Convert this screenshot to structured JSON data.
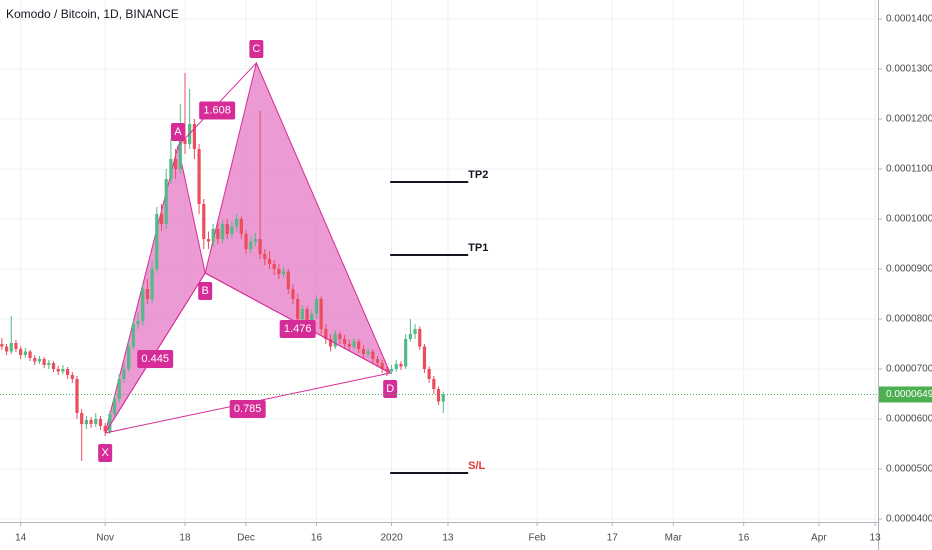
{
  "chart_data": {
    "type": "candlestick",
    "title": "Komodo / Bitcoin, 1D, BINANCE",
    "x": [
      -22,
      -21,
      -20,
      -19,
      -18,
      -17,
      -16,
      -15,
      -14,
      -13,
      -12,
      -11,
      -10,
      -9,
      -8,
      -7,
      -6,
      -5,
      -4,
      -3,
      -2,
      -1,
      0,
      1,
      2,
      3,
      4,
      5,
      6,
      7,
      8,
      9,
      10,
      11,
      12,
      13,
      14,
      15,
      16,
      17,
      18,
      19,
      20,
      21,
      22,
      23,
      24,
      25,
      26,
      27,
      28,
      29,
      30,
      31,
      32,
      33,
      34,
      35,
      36,
      37,
      38,
      39,
      40,
      41,
      42,
      43,
      44,
      45,
      46,
      47,
      48,
      49,
      50,
      51,
      52,
      53,
      54,
      55,
      56,
      57,
      58,
      59,
      60,
      61,
      62,
      63,
      64,
      65,
      66,
      67,
      68,
      69,
      70,
      71,
      72
    ],
    "open": [
      7.5e-05,
      7.45e-05,
      7.35e-05,
      7.52e-05,
      7.4e-05,
      7.28e-05,
      7.35e-05,
      7.22e-05,
      7.15e-05,
      7.2e-05,
      7.08e-05,
      7.12e-05,
      7e-05,
      6.95e-05,
      7e-05,
      6.88e-05,
      6.8e-05,
      6.12e-05,
      5.9e-05,
      5.98e-05,
      5.9e-05,
      6e-05,
      5.86e-05,
      5.75e-05,
      6.1e-05,
      6.4e-05,
      6.8e-05,
      7e-05,
      7.45e-05,
      7.9e-05,
      7.96e-05,
      8.6e-05,
      8.4e-05,
      9e-05,
      0.000101,
      9.9e-05,
      0.000108,
      0.000112,
      0.00011,
      0.000116,
      0.000115,
      0.000119,
      0.000114,
      0.000103,
      9.6e-05,
      9.55e-05,
      9.8e-05,
      9.6e-05,
      9.9e-05,
      9.7e-05,
      9.85e-05,
      0.0001,
      9.7e-05,
      9.4e-05,
      9.55e-05,
      9.6e-05,
      9.3e-05,
      9.2e-05,
      9.1e-05,
      9e-05,
      8.9e-05,
      8.95e-05,
      8.6e-05,
      8.4e-05,
      8e-05,
      8.2e-05,
      7.9e-05,
      8.1e-05,
      8.4e-05,
      7.8e-05,
      7.6e-05,
      7.45e-05,
      7.7e-05,
      7.6e-05,
      7.5e-05,
      7.45e-05,
      7.55e-05,
      7.4e-05,
      7.3e-05,
      7.35e-05,
      7.2e-05,
      7.12e-05,
      7e-05,
      6.95e-05,
      7e-05,
      7.1e-05,
      7.05e-05,
      7.6e-05,
      7.7e-05,
      7.8e-05,
      7.45e-05,
      7e-05,
      6.8e-05,
      6.6e-05,
      6.35e-05
    ],
    "high": [
      7.62e-05,
      7.5e-05,
      8.06e-05,
      7.58e-05,
      7.45e-05,
      7.42e-05,
      7.38e-05,
      7.28e-05,
      7.26e-05,
      7.24e-05,
      7.18e-05,
      7.16e-05,
      7.06e-05,
      7.08e-05,
      7.04e-05,
      6.94e-05,
      6.86e-05,
      6.2e-05,
      6.06e-05,
      6.04e-05,
      6.12e-05,
      6.06e-05,
      5.92e-05,
      6.16e-05,
      6.48e-05,
      6.9e-05,
      7.12e-05,
      7.56e-05,
      8e-05,
      8.12e-05,
      8.72e-05,
      8.8e-05,
      9.16e-05,
      0.0001024,
      0.000103,
      0.00011,
      0.000116,
      0.000114,
      0.000123,
      0.0001292,
      0.000126,
      0.00012,
      0.000115,
      0.000104,
      9.75e-05,
      9.9e-05,
      9.92e-05,
      9.98e-05,
      0.0001,
      9.95e-05,
      0.000101,
      0.0001005,
      9.78e-05,
      9.65e-05,
      9.72e-05,
      0.0001216,
      9.4e-05,
      9.35e-05,
      9.18e-05,
      9.1e-05,
      9.05e-05,
      9e-05,
      8.7e-05,
      8.5e-05,
      8.28e-05,
      8.26e-05,
      8.18e-05,
      8.48e-05,
      8.45e-05,
      7.9e-05,
      7.7e-05,
      7.78e-05,
      7.75e-05,
      7.68e-05,
      7.58e-05,
      7.62e-05,
      7.6e-05,
      7.48e-05,
      7.42e-05,
      7.4e-05,
      7.26e-05,
      7.18e-05,
      7.06e-05,
      7.08e-05,
      7.18e-05,
      7.16e-05,
      7.7e-05,
      8e-05,
      7.9e-05,
      7.85e-05,
      7.5e-05,
      7.05e-05,
      6.86e-05,
      6.65e-05,
      6.55e-05
    ],
    "low": [
      7.38e-05,
      7.28e-05,
      7.3e-05,
      7.34e-05,
      7.2e-05,
      7.22e-05,
      7.16e-05,
      7.08e-05,
      7.1e-05,
      7.02e-05,
      7e-05,
      6.94e-05,
      6.88e-05,
      6.9e-05,
      6.8e-05,
      6.72e-05,
      6e-05,
      5.16e-05,
      5.8e-05,
      5.82e-05,
      5.84e-05,
      5.78e-05,
      5.66e-05,
      5.7e-05,
      6.04e-05,
      6.32e-05,
      6.72e-05,
      6.94e-05,
      7.38e-05,
      7.8e-05,
      7.88e-05,
      8.3e-05,
      8.32e-05,
      8.92e-05,
      9.76e-05,
      9.8e-05,
      0.000107,
      0.000108,
      0.000109,
      0.000113,
      0.000114,
      0.000112,
      0.000101,
      9.4e-05,
      9.4e-05,
      9.45e-05,
      9.5e-05,
      9.52e-05,
      9.6e-05,
      9.62e-05,
      9.75e-05,
      9.6e-05,
      9.3e-05,
      9.32e-05,
      9.45e-05,
      9.2e-05,
      9.08e-05,
      9e-05,
      8.88e-05,
      8.8e-05,
      8.82e-05,
      8.5e-05,
      8.3e-05,
      7.9e-05,
      7.92e-05,
      7.7e-05,
      7.8e-05,
      8e-05,
      7.7e-05,
      7.5e-05,
      7.35e-05,
      7.4e-05,
      7.5e-05,
      7.42e-05,
      7.38e-05,
      7.4e-05,
      7.32e-05,
      7.22e-05,
      7.24e-05,
      7.12e-05,
      7.04e-05,
      6.92e-05,
      6.86e-05,
      6.9e-05,
      6.94e-05,
      6.98e-05,
      7e-05,
      7.55e-05,
      7.6e-05,
      7.38e-05,
      6.92e-05,
      6.72e-05,
      6.5e-05,
      6.28e-05,
      6.12e-05
    ],
    "close": [
      7.45e-05,
      7.35e-05,
      7.52e-05,
      7.4e-05,
      7.28e-05,
      7.35e-05,
      7.22e-05,
      7.15e-05,
      7.2e-05,
      7.08e-05,
      7.12e-05,
      7e-05,
      6.95e-05,
      7e-05,
      6.88e-05,
      6.8e-05,
      6.12e-05,
      5.9e-05,
      5.98e-05,
      5.9e-05,
      6e-05,
      5.86e-05,
      5.75e-05,
      6.1e-05,
      6.4e-05,
      6.8e-05,
      7e-05,
      7.45e-05,
      7.9e-05,
      7.96e-05,
      8.6e-05,
      8.4e-05,
      9e-05,
      0.000101,
      9.9e-05,
      0.000108,
      0.000112,
      0.00011,
      0.000116,
      0.000115,
      0.000119,
      0.000114,
      0.000103,
      9.6e-05,
      9.55e-05,
      9.8e-05,
      9.6e-05,
      9.9e-05,
      9.7e-05,
      9.85e-05,
      0.0001,
      9.7e-05,
      9.4e-05,
      9.55e-05,
      9.6e-05,
      9.3e-05,
      9.2e-05,
      9.1e-05,
      9e-05,
      8.9e-05,
      8.95e-05,
      8.6e-05,
      8.4e-05,
      8e-05,
      8.2e-05,
      7.9e-05,
      8.1e-05,
      8.4e-05,
      7.8e-05,
      7.6e-05,
      7.45e-05,
      7.7e-05,
      7.6e-05,
      7.5e-05,
      7.45e-05,
      7.55e-05,
      7.4e-05,
      7.3e-05,
      7.35e-05,
      7.2e-05,
      7.12e-05,
      7e-05,
      6.95e-05,
      7e-05,
      7.1e-05,
      7.05e-05,
      7.6e-05,
      7.7e-05,
      7.8e-05,
      7.45e-05,
      7e-05,
      6.8e-05,
      6.6e-05,
      6.35e-05,
      6.49e-05
    ],
    "up_color": "#53b987",
    "down_color": "#eb4d5c",
    "xlim": [
      -22.4,
      164.6
    ],
    "xticks": [
      {
        "value": -18,
        "label": "14"
      },
      {
        "value": 0,
        "label": "Nov"
      },
      {
        "value": 17,
        "label": "18"
      },
      {
        "value": 30,
        "label": "Dec"
      },
      {
        "value": 45,
        "label": "16"
      },
      {
        "value": 61,
        "label": "2020"
      },
      {
        "value": 73,
        "label": "13"
      },
      {
        "value": 92,
        "label": "Feb"
      },
      {
        "value": 108,
        "label": "17"
      },
      {
        "value": 121,
        "label": "Mar"
      },
      {
        "value": 136,
        "label": "16"
      },
      {
        "value": 152,
        "label": "Apr"
      },
      {
        "value": 164,
        "label": "13"
      }
    ],
    "ylim": [
      3.94e-05,
      0.0001438
    ],
    "yticks": [
      {
        "value": 4e-05,
        "label": "0.0000400"
      },
      {
        "value": 5e-05,
        "label": "0.0000500"
      },
      {
        "value": 6e-05,
        "label": "0.0000600"
      },
      {
        "value": 7e-05,
        "label": "0.0000700"
      },
      {
        "value": 8e-05,
        "label": "0.0000800"
      },
      {
        "value": 9e-05,
        "label": "0.0000900"
      },
      {
        "value": 0.0001,
        "label": "0.0001000"
      },
      {
        "value": 0.00011,
        "label": "0.0001100"
      },
      {
        "value": 0.00012,
        "label": "0.0001200"
      },
      {
        "value": 0.00013,
        "label": "0.0001300"
      },
      {
        "value": 0.00014,
        "label": "0.0001400"
      }
    ],
    "grid": true,
    "last_price": 6.49e-05,
    "last_price_color": "#4caf50",
    "pattern": {
      "color": "#d62c97",
      "fill": "#e46fc0",
      "points": [
        {
          "label": "X",
          "x": 0,
          "y": 5.72e-05
        },
        {
          "label": "A",
          "x": 15.5,
          "y": 0.0001146
        },
        {
          "label": "B",
          "x": 21.3,
          "y": 8.92e-05
        },
        {
          "label": "C",
          "x": 32.2,
          "y": 0.0001312
        },
        {
          "label": "D",
          "x": 60.7,
          "y": 6.92e-05
        }
      ],
      "ratios": [
        0.445,
        1.608,
        1.476,
        0.785
      ]
    },
    "levels": [
      {
        "name": "TP2",
        "value": 0.0001074,
        "color": "#131722"
      },
      {
        "name": "TP1",
        "value": 9.28e-05,
        "color": "#131722"
      },
      {
        "name": "S/L",
        "value": 4.92e-05,
        "color": "#e53935"
      }
    ]
  }
}
